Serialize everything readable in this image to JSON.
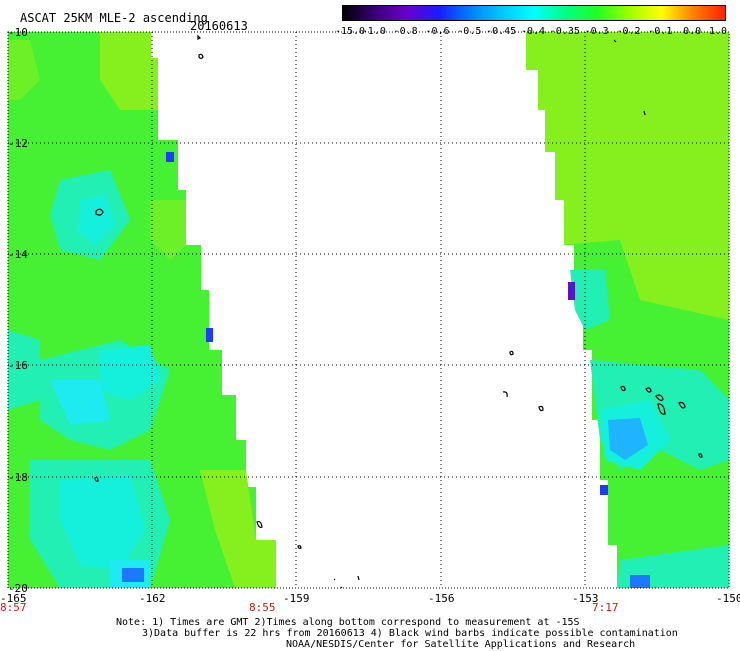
{
  "header": {
    "title": "ASCAT 25KM MLE-2 ascending",
    "date": "20160613"
  },
  "colorbar": {
    "labels": [
      "-15.0",
      "-1.0",
      "-0.8",
      "-0.6",
      "-0.5",
      "-0.45",
      "-0.4",
      "-0.35",
      "-0.3",
      "-0.2",
      "-0.1",
      "0.0",
      "1.0"
    ],
    "colors": [
      "#000000",
      "#3a007a",
      "#6a00c8",
      "#1a1aff",
      "#0080ff",
      "#00c8ff",
      "#00ffff",
      "#00ff80",
      "#20ff20",
      "#a0ff00",
      "#ffff00",
      "#ff8000",
      "#ff2000"
    ]
  },
  "axes": {
    "lat_labels": [
      "-10",
      "-12",
      "-14",
      "-16",
      "-18",
      "-20"
    ],
    "lon_labels": [
      "-165",
      "-162",
      "-159",
      "-156",
      "-153",
      "-150"
    ],
    "lat_range": [
      -20,
      -10
    ],
    "lon_range": [
      -165,
      -150
    ]
  },
  "pass_times": [
    "8:57",
    "8:55",
    "7:17"
  ],
  "notes": {
    "line1": "Note: 1) Times are GMT 2)Times along bottom correspond to measurement at -15S",
    "line2": "3)Data buffer is 22 hrs from 20160613 4) Black wind barbs indicate possible contamination",
    "line3": "NOAA/NESDIS/Center for Satellite Applications and Research"
  },
  "palette": {
    "green": "#3cf23c",
    "lime": "#8cf214",
    "cyan": "#14f0dc",
    "cyan_light": "#1eebf0",
    "blue": "#1e3cff",
    "purple": "#5a14c8"
  }
}
